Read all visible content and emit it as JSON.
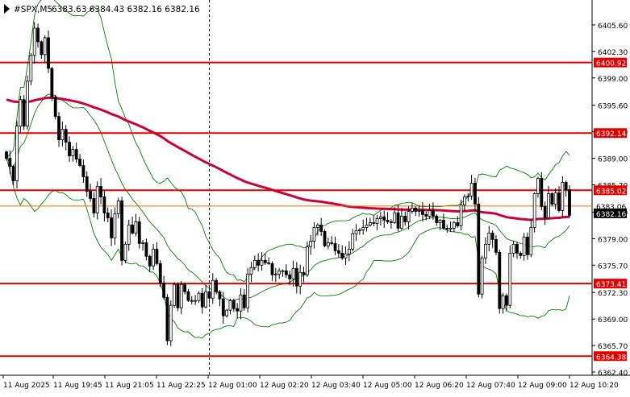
{
  "chart_header": {
    "symbol": "#SPX,M5",
    "ohlc": "6383.63 6384.43 6382.16 6382.16"
  },
  "colors": {
    "background": "#ffffff",
    "candle": "#000000",
    "bollinger": "#008000",
    "ma_line": "#c8003c",
    "level_line": "#e00000",
    "bid_line": "#e07000",
    "tag_bg": "#e00000",
    "price_tag_bg": "#000000",
    "text": "#000000"
  },
  "chart_data": {
    "type": "candlestick",
    "symbol": "#SPX",
    "timeframe": "M5",
    "y_range": [
      6362.0,
      6408.5
    ],
    "y_ticks": [
      6405.6,
      6402.3,
      6399.0,
      6395.6,
      6392.3,
      6389.0,
      6385.7,
      6382.3,
      6379.0,
      6375.7,
      6372.3,
      6369.0,
      6365.7,
      6362.4
    ],
    "x_labels": [
      "11 Aug 2025",
      "11 Aug 19:45",
      "11 Aug 21:05",
      "11 Aug 22:25",
      "12 Aug 01:00",
      "12 Aug 02:20",
      "12 Aug 03:40",
      "12 Aug 05:00",
      "12 Aug 06:20",
      "12 Aug 07:40",
      "12 Aug 09:00",
      "12 Aug 10:20"
    ],
    "horizontal_levels": [
      {
        "value": 6400.92,
        "label": "6400.92"
      },
      {
        "value": 6392.14,
        "label": "6392.14"
      },
      {
        "value": 6385.02,
        "label": "6385.02"
      },
      {
        "value": 6373.41,
        "label": "6373.41"
      },
      {
        "value": 6364.38,
        "label": "6364.38"
      }
    ],
    "bid_line": {
      "value": 6383.06,
      "label": "6383.06"
    },
    "current_price": {
      "value": 6382.16,
      "label": "6382.16"
    },
    "session_separator": "12 Aug 01:00",
    "price_path": [
      6389.0,
      6388.0,
      6386.2,
      6393.0,
      6396.3,
      6393.0,
      6398.6,
      6401.8,
      6405.2,
      6403.5,
      6401.9,
      6404.0,
      6400.2,
      6396.6,
      6394.2,
      6391.3,
      6392.6,
      6391.0,
      6389.3,
      6390.1,
      6388.9,
      6388.1,
      6386.7,
      6384.9,
      6384.0,
      6382.2,
      6385.5,
      6384.2,
      6382.2,
      6381.6,
      6379.1,
      6382.1,
      6383.7,
      6376.3,
      6378.3,
      6380.7,
      6379.7,
      6381.1,
      6378.4,
      6378.5,
      6376.8,
      6375.6,
      6377.7,
      6375.9,
      6373.5,
      6371.7,
      6366.3,
      6370.7,
      6373.3,
      6370.4,
      6373.3,
      6372.4,
      6371.3,
      6371.2,
      6371.3,
      6372.2,
      6370.5,
      6372.4,
      6371.6,
      6373.8,
      6372.4,
      6371.5,
      6369.4,
      6370.1,
      6371.3,
      6370.3,
      6370.0,
      6372.0,
      6370.4,
      6374.6,
      6375.4,
      6376.3,
      6375.7,
      6376.3,
      6376.0,
      6375.9,
      6374.5,
      6374.6,
      6375.0,
      6375.0,
      6374.5,
      6374.0,
      6375.3,
      6373.1,
      6374.8,
      6374.5,
      6378.0,
      6378.7,
      6380.4,
      6380.7,
      6379.9,
      6378.1,
      6378.5,
      6378.4,
      6377.5,
      6377.2,
      6376.6,
      6377.1,
      6377.7,
      6379.6,
      6380.0,
      6380.1,
      6380.4,
      6380.7,
      6381.0,
      6380.9,
      6381.5,
      6381.7,
      6381.3,
      6381.1,
      6381.0,
      6382.2,
      6380.3,
      6381.8,
      6381.1,
      6382.4,
      6382.8,
      6382.4,
      6382.5,
      6382.0,
      6381.8,
      6382.5,
      6381.8,
      6381.0,
      6381.3,
      6380.3,
      6380.2,
      6380.3,
      6381.0,
      6380.6,
      6383.2,
      6384.2,
      6384.3,
      6385.9,
      6383.3,
      6372.1,
      6376.6,
      6378.3,
      6379.7,
      6378.9,
      6377.3,
      6370.3,
      6371.9,
      6370.7,
      6377.2,
      6378.3,
      6377.2,
      6376.9,
      6379.2,
      6377.0,
      6380.4,
      6384.6,
      6386.5,
      6383.0,
      6381.6,
      6384.6,
      6383.3,
      6384.7,
      6382.5,
      6386.0,
      6385.1,
      6381.9
    ]
  }
}
